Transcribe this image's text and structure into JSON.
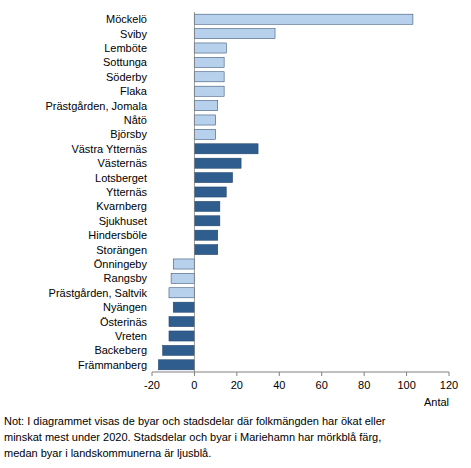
{
  "chart_data": {
    "type": "bar",
    "orientation": "horizontal",
    "categories": [
      "Möckelö",
      "Sviby",
      "Lemböte",
      "Sottunga",
      "Söderby",
      "Flaka",
      "Prästgården, Jomala",
      "Nåtö",
      "Björsby",
      "Västra Ytternäs",
      "Västernäs",
      "Lotsberget",
      "Ytternäs",
      "Kvarnberg",
      "Sjukhuset",
      "Hindersböle",
      "Storängen",
      "Önningeby",
      "Rangsby",
      "Prästgården, Saltvik",
      "Nyängen",
      "Österinäs",
      "Vreten",
      "Backeberg",
      "Främmanberg"
    ],
    "values": [
      103,
      38,
      15,
      14,
      14,
      14,
      11,
      10,
      10,
      30,
      22,
      18,
      15,
      12,
      12,
      11,
      11,
      -10,
      -11,
      -12,
      -10,
      -12,
      -12,
      -15,
      -17
    ],
    "colors": [
      "#b7d0ec",
      "#b7d0ec",
      "#b7d0ec",
      "#b7d0ec",
      "#b7d0ec",
      "#b7d0ec",
      "#b7d0ec",
      "#b7d0ec",
      "#b7d0ec",
      "#2f5d8e",
      "#2f5d8e",
      "#2f5d8e",
      "#2f5d8e",
      "#2f5d8e",
      "#2f5d8e",
      "#2f5d8e",
      "#2f5d8e",
      "#b7d0ec",
      "#b7d0ec",
      "#b7d0ec",
      "#2f5d8e",
      "#2f5d8e",
      "#2f5d8e",
      "#2f5d8e",
      "#2f5d8e"
    ],
    "x_label": "Antal",
    "xlim": [
      -20,
      120
    ],
    "xticks": [
      -20,
      0,
      20,
      40,
      60,
      80,
      100,
      120
    ],
    "grid": false,
    "note": [
      "Not: I diagrammet visas de byar och stadsdelar där folkmängden har ökat eller",
      "minskat mest under 2020. Stadsdelar och byar i Mariehamn har mörkblå färg,",
      "medan byar i landskommunerna är ljusblå."
    ]
  }
}
